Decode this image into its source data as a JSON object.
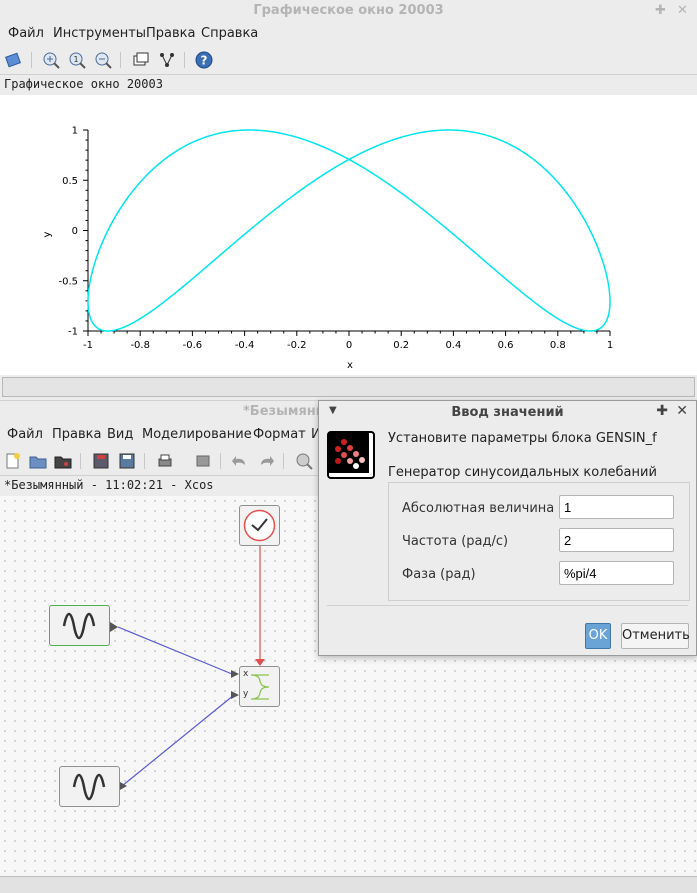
{
  "graphic_window": {
    "title": "Графическое окно 20003",
    "menu": [
      "Файл",
      "Инструменты",
      "Правка",
      "Справка"
    ],
    "subtitle": "Графическое окно 20003",
    "toolbar_icons": [
      "rotate-icon",
      "zoom-grid-icon",
      "zoom-in-icon",
      "zoom-out-icon",
      "datatip-icon",
      "graph-edit-icon",
      "help-icon"
    ]
  },
  "chart_data": {
    "type": "line",
    "title": "",
    "xlabel": "x",
    "ylabel": "y",
    "xlim": [
      -1,
      1
    ],
    "ylim": [
      -1,
      1
    ],
    "x_ticks": [
      "-1",
      "-0.8",
      "-0.6",
      "-0.4",
      "-0.2",
      "0",
      "0.2",
      "0.4",
      "0.6",
      "0.8",
      "1"
    ],
    "y_ticks": [
      "1",
      "0.5",
      "0",
      "-0.5",
      "-1"
    ],
    "series": [
      {
        "x_function": "sin(t)",
        "y_function": "sin(2t + %pi/4)",
        "color": "#00e5ee"
      }
    ],
    "grid": false
  },
  "xcos_window": {
    "title": "*Безымянн",
    "menu": [
      "Файл",
      "Правка",
      "Вид",
      "Моделирование",
      "Формат",
      "И"
    ],
    "subtitle": "*Безымянный - 11:02:21 - Xcos",
    "port_labels": {
      "x": "x",
      "y": "y"
    },
    "toolbar_icons": [
      "new-diagram-icon",
      "open-icon",
      "open-in-scilab-icon",
      "save-icon",
      "save-as-icon",
      "print-icon",
      "export-icon",
      "undo-icon",
      "redo-icon",
      "zoom-icon"
    ]
  },
  "dialog": {
    "title": "Ввод значений",
    "header": "Установите параметры блока GENSIN_f",
    "description": "Генератор синусоидальных колебаний",
    "fields": [
      {
        "label": "Абсолютная величина",
        "value": "1"
      },
      {
        "label": "Частота (рад/с)",
        "value": "2"
      },
      {
        "label": "Фаза (рад)",
        "value": "%pi/4"
      }
    ],
    "ok_label": "OK",
    "cancel_label": "Отменить"
  },
  "colors": {
    "curve": "#00e5ee",
    "ok_button": "#6aa4d6",
    "clock_link": "#e05050",
    "data_link": "#5a5ad0"
  }
}
